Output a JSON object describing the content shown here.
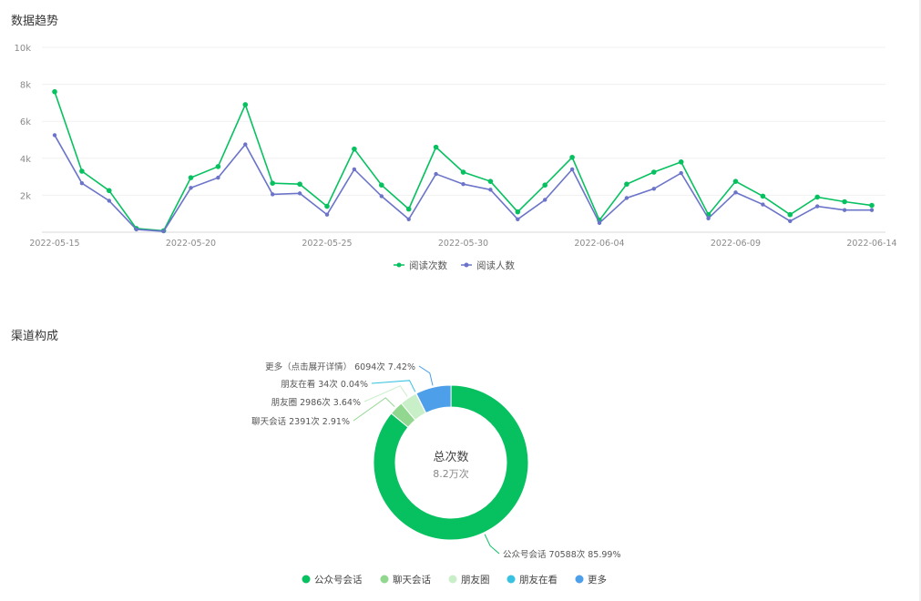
{
  "sections": {
    "trend_title": "数据趋势",
    "channel_title": "渠道构成"
  },
  "chart_data": [
    {
      "type": "line",
      "title": "数据趋势",
      "x": [
        "2022-05-15",
        "2022-05-16",
        "2022-05-17",
        "2022-05-18",
        "2022-05-19",
        "2022-05-20",
        "2022-05-21",
        "2022-05-22",
        "2022-05-23",
        "2022-05-24",
        "2022-05-25",
        "2022-05-26",
        "2022-05-27",
        "2022-05-28",
        "2022-05-29",
        "2022-05-30",
        "2022-05-31",
        "2022-06-01",
        "2022-06-02",
        "2022-06-03",
        "2022-06-04",
        "2022-06-05",
        "2022-06-06",
        "2022-06-07",
        "2022-06-08",
        "2022-06-09",
        "2022-06-10",
        "2022-06-11",
        "2022-06-12",
        "2022-06-13",
        "2022-06-14"
      ],
      "x_tick_labels": [
        "2022-05-15",
        "2022-05-20",
        "2022-05-25",
        "2022-05-30",
        "2022-06-04",
        "2022-06-09",
        "2022-06-14"
      ],
      "ylim": [
        0,
        10000
      ],
      "y_ticks": [
        2000,
        4000,
        6000,
        8000,
        10000
      ],
      "y_tick_labels": [
        "2k",
        "4k",
        "6k",
        "8k",
        "10k"
      ],
      "grid": true,
      "legend_position": "bottom-center",
      "series": [
        {
          "name": "阅读次数",
          "color": "#07c160",
          "values": [
            7600,
            3300,
            2250,
            200,
            80,
            2950,
            3550,
            6900,
            2650,
            2600,
            1400,
            4500,
            2550,
            1250,
            4600,
            3250,
            2750,
            1100,
            2550,
            4050,
            650,
            2600,
            3250,
            3800,
            950,
            2750,
            1950,
            950,
            1900,
            1650,
            1450
          ]
        },
        {
          "name": "阅读人数",
          "color": "#6b74c9",
          "values": [
            5250,
            2650,
            1700,
            150,
            50,
            2400,
            2950,
            4750,
            2050,
            2100,
            950,
            3400,
            1950,
            700,
            3150,
            2600,
            2300,
            700,
            1750,
            3400,
            500,
            1850,
            2350,
            3200,
            750,
            2150,
            1500,
            600,
            1400,
            1200,
            1200
          ]
        }
      ]
    },
    {
      "type": "pie",
      "title": "渠道构成",
      "center_title": "总次数",
      "center_value": "8.2万次",
      "slices": [
        {
          "name": "公众号会话",
          "value": 70588,
          "label": "公众号会话 70588次 85.99%",
          "color": "#07c160"
        },
        {
          "name": "聊天会话",
          "value": 2391,
          "label": "聊天会话 2391次 2.91%",
          "color": "#91d790"
        },
        {
          "name": "朋友圈",
          "value": 2986,
          "label": "朋友圈 2986次 3.64%",
          "color": "#c9efc9"
        },
        {
          "name": "朋友在看",
          "value": 34,
          "label": "朋友在看 34次 0.04%",
          "color": "#36c2e0"
        },
        {
          "name": "更多",
          "value": 6094,
          "label": "更多（点击展开详情） 6094次 7.42%",
          "color": "#4c9fe8"
        }
      ],
      "legend_position": "bottom-center"
    }
  ]
}
